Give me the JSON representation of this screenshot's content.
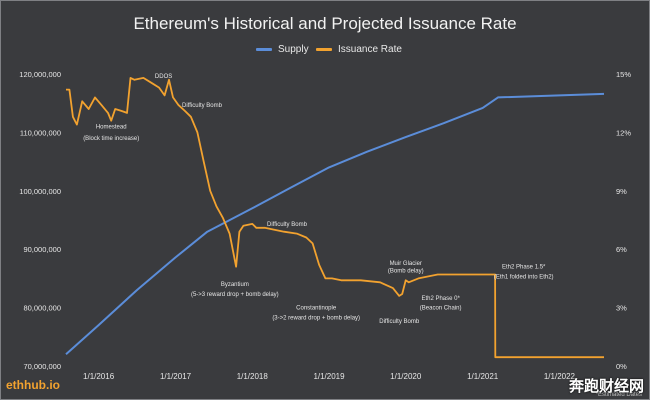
{
  "colors": {
    "background": "#3a3b3e",
    "supply": "#5b8dd9",
    "issuance": "#f2a22f",
    "text": "#e6e6e6"
  },
  "watermarks": {
    "source": "ethhub.io",
    "site": "奔跑财经网",
    "footnote": "*Estimated Dates"
  },
  "chart_data": {
    "type": "line",
    "title": "Ethereum's Historical and Projected Issuance Rate",
    "xlabel": "",
    "legend_position": "top-center",
    "grid": false,
    "x_range": [
      "2015-07-30",
      "2022-08-01"
    ],
    "x_ticks": [
      "1/1/2016",
      "1/1/2017",
      "1/1/2018",
      "1/1/2019",
      "1/1/2020",
      "1/1/2021",
      "1/1/2022"
    ],
    "y_left": {
      "ylim": [
        70000000,
        120000000
      ],
      "ticks": [
        70000000,
        80000000,
        90000000,
        100000000,
        110000000,
        120000000
      ],
      "tick_labels": [
        "70,000,000",
        "80,000,000",
        "90,000,000",
        "100,000,000",
        "110,000,000",
        "120,000,000"
      ]
    },
    "y_right": {
      "ylim": [
        0,
        15
      ],
      "ticks": [
        0,
        3,
        6,
        9,
        12,
        15
      ],
      "tick_labels": [
        "0%",
        "3%",
        "6%",
        "9%",
        "12%",
        "15%"
      ]
    },
    "series": [
      {
        "name": "Supply",
        "axis": "left",
        "points": [
          [
            "2015-07-30",
            72000000
          ],
          [
            "2016-01-01",
            77000000
          ],
          [
            "2016-07-01",
            83000000
          ],
          [
            "2017-01-01",
            88600000
          ],
          [
            "2017-06-01",
            93000000
          ],
          [
            "2018-01-01",
            97000000
          ],
          [
            "2018-07-01",
            100500000
          ],
          [
            "2019-01-01",
            104000000
          ],
          [
            "2019-07-01",
            106700000
          ],
          [
            "2020-01-01",
            109200000
          ],
          [
            "2020-07-01",
            111600000
          ],
          [
            "2021-01-01",
            114200000
          ],
          [
            "2021-03-15",
            116000000
          ],
          [
            "2022-08-01",
            116600000
          ]
        ]
      },
      {
        "name": "Issuance Rate",
        "axis": "right",
        "points": [
          [
            "2015-07-30",
            14.2
          ],
          [
            "2015-08-15",
            14.2
          ],
          [
            "2015-09-01",
            12.8
          ],
          [
            "2015-09-20",
            12.4
          ],
          [
            "2015-10-15",
            13.6
          ],
          [
            "2015-11-15",
            13.2
          ],
          [
            "2015-12-15",
            13.8
          ],
          [
            "2016-01-15",
            13.4
          ],
          [
            "2016-02-15",
            13.0
          ],
          [
            "2016-03-01",
            12.6
          ],
          [
            "2016-03-20",
            13.2
          ],
          [
            "2016-04-20",
            13.1
          ],
          [
            "2016-05-15",
            13.0
          ],
          [
            "2016-06-01",
            14.8
          ],
          [
            "2016-06-20",
            14.7
          ],
          [
            "2016-08-01",
            14.8
          ],
          [
            "2016-09-15",
            14.5
          ],
          [
            "2016-10-15",
            14.3
          ],
          [
            "2016-11-10",
            13.9
          ],
          [
            "2016-12-01",
            14.7
          ],
          [
            "2016-12-20",
            13.8
          ],
          [
            "2017-01-15",
            13.4
          ],
          [
            "2017-02-15",
            13.1
          ],
          [
            "2017-03-15",
            12.8
          ],
          [
            "2017-04-15",
            12.0
          ],
          [
            "2017-05-15",
            10.5
          ],
          [
            "2017-06-15",
            9.0
          ],
          [
            "2017-07-15",
            8.2
          ],
          [
            "2017-08-15",
            7.6
          ],
          [
            "2017-09-15",
            6.8
          ],
          [
            "2017-10-16",
            5.1
          ],
          [
            "2017-11-01",
            6.9
          ],
          [
            "2017-11-20",
            7.2
          ],
          [
            "2018-01-01",
            7.3
          ],
          [
            "2018-01-20",
            7.1
          ],
          [
            "2018-03-01",
            7.1
          ],
          [
            "2018-06-01",
            6.9
          ],
          [
            "2018-08-01",
            6.8
          ],
          [
            "2018-09-15",
            6.6
          ],
          [
            "2018-10-15",
            6.3
          ],
          [
            "2018-11-15",
            5.2
          ],
          [
            "2018-12-15",
            4.5
          ],
          [
            "2019-01-15",
            4.5
          ],
          [
            "2019-02-28",
            4.4
          ],
          [
            "2019-06-01",
            4.4
          ],
          [
            "2019-09-01",
            4.3
          ],
          [
            "2019-11-01",
            4.0
          ],
          [
            "2019-12-01",
            3.6
          ],
          [
            "2019-12-15",
            3.7
          ],
          [
            "2020-01-01",
            4.4
          ],
          [
            "2020-01-15",
            4.3
          ],
          [
            "2020-03-01",
            4.5
          ],
          [
            "2020-06-01",
            4.7
          ],
          [
            "2020-12-01",
            4.7
          ],
          [
            "2021-03-01",
            4.7
          ],
          [
            "2021-03-02",
            0.45
          ],
          [
            "2022-08-01",
            0.45
          ]
        ]
      }
    ],
    "annotations": [
      {
        "text": "DDOS",
        "x": "2016-09-25",
        "y": 14.8,
        "axis": "right",
        "anchor": "start"
      },
      {
        "text": "Homestead",
        "x": "2016-03-01",
        "y": 12.2,
        "axis": "right",
        "anchor": "middle"
      },
      {
        "text": "(Block time increase)",
        "x": "2016-03-01",
        "y": 11.6,
        "axis": "right",
        "anchor": "middle"
      },
      {
        "text": "Difficulty Bomb",
        "x": "2017-02-01",
        "y": 13.3,
        "axis": "right",
        "anchor": "start"
      },
      {
        "text": "Byzantium",
        "x": "2017-10-10",
        "y": 4.1,
        "axis": "right",
        "anchor": "middle"
      },
      {
        "text": "(5->3 reward drop + bomb delay)",
        "x": "2017-10-10",
        "y": 3.6,
        "axis": "right",
        "anchor": "middle"
      },
      {
        "text": "Difficulty Bomb",
        "x": "2018-06-15",
        "y": 7.2,
        "axis": "right",
        "anchor": "middle"
      },
      {
        "text": "Constantinople",
        "x": "2018-11-01",
        "y": 2.9,
        "axis": "right",
        "anchor": "middle"
      },
      {
        "text": "(3->2 reward drop + bomb delay)",
        "x": "2018-11-01",
        "y": 2.4,
        "axis": "right",
        "anchor": "middle"
      },
      {
        "text": "Difficulty Bomb",
        "x": "2019-12-01",
        "y": 2.2,
        "axis": "right",
        "anchor": "middle"
      },
      {
        "text": "Muir Glacier",
        "x": "2020-01-01",
        "y": 5.2,
        "axis": "right",
        "anchor": "middle"
      },
      {
        "text": "(Bomb delay)",
        "x": "2020-01-01",
        "y": 4.8,
        "axis": "right",
        "anchor": "middle"
      },
      {
        "text": "Eth2 Phase 0*",
        "x": "2020-06-15",
        "y": 3.4,
        "axis": "right",
        "anchor": "middle"
      },
      {
        "text": "(Beacon Chain)",
        "x": "2020-06-15",
        "y": 2.9,
        "axis": "right",
        "anchor": "middle"
      },
      {
        "text": "Eth2 Phase 1.5*",
        "x": "2021-07-15",
        "y": 5.0,
        "axis": "right",
        "anchor": "middle"
      },
      {
        "text": "(Eth1 folded into Eth2)",
        "x": "2021-07-15",
        "y": 4.5,
        "axis": "right",
        "anchor": "middle"
      }
    ]
  }
}
